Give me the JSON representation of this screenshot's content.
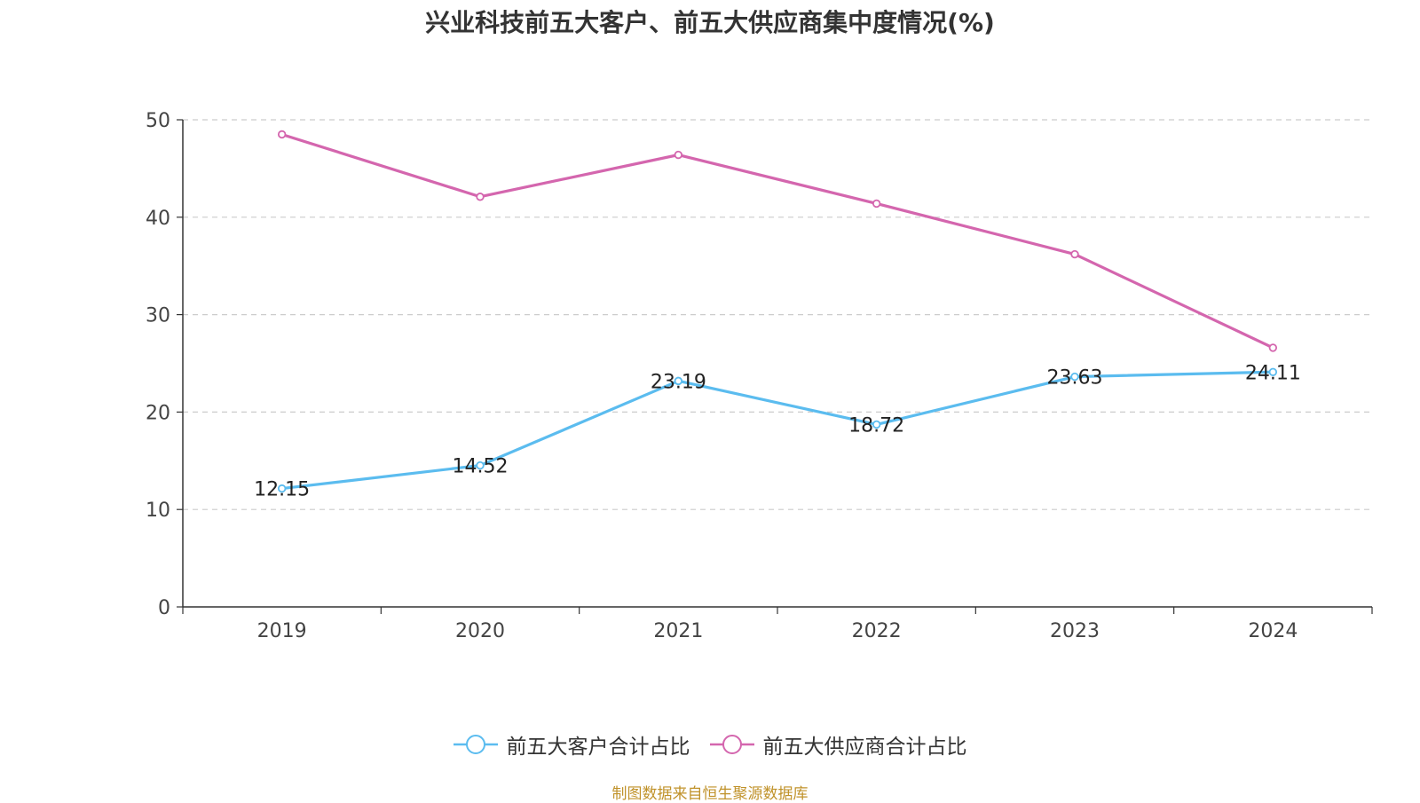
{
  "chart_data": {
    "type": "line",
    "title": "兴业科技前五大客户、前五大供应商集中度情况(%)",
    "xlabel": "",
    "ylabel": "",
    "categories": [
      "2019",
      "2020",
      "2021",
      "2022",
      "2023",
      "2024"
    ],
    "ylim": [
      0,
      50
    ],
    "yticks": [
      0,
      10,
      20,
      30,
      40,
      50
    ],
    "grid": true,
    "legend_position": "bottom",
    "series": [
      {
        "name": "前五大客户合计占比",
        "color": "#5bbcef",
        "values": [
          12.15,
          14.52,
          23.19,
          18.72,
          23.63,
          24.11
        ],
        "labels": [
          "12.15",
          "14.52",
          "23.19",
          "18.72",
          "23.63",
          "24.11"
        ]
      },
      {
        "name": "前五大供应商合计占比",
        "color": "#d466ae",
        "values": [
          48.5,
          42.1,
          46.4,
          41.4,
          36.2,
          26.6
        ],
        "labels": []
      }
    ]
  },
  "footer": {
    "source_note": "制图数据来自恒生聚源数据库"
  }
}
